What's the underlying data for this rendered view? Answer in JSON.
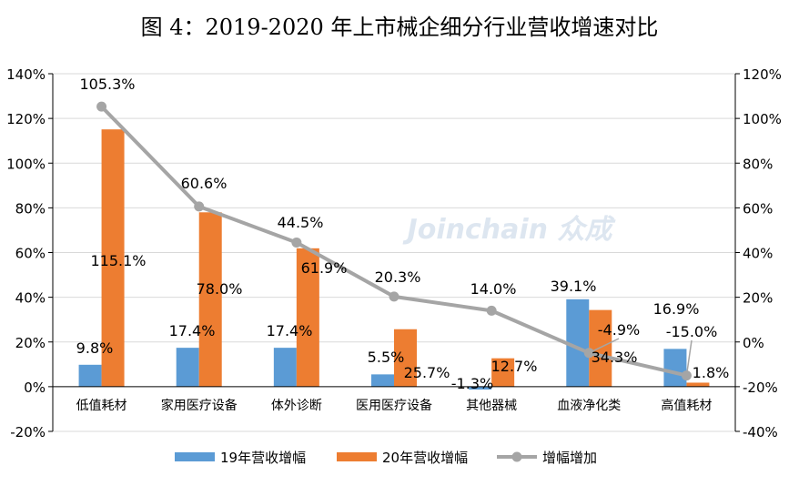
{
  "chart_data": {
    "type": "bar",
    "title": "图 4：2019-2020 年上市械企细分行业营收增速对比",
    "categories": [
      "低值耗材",
      "家用医疗设备",
      "体外诊断",
      "医用医疗设备",
      "其他器械",
      "血液净化类",
      "高值耗材"
    ],
    "series": [
      {
        "name": "19年营收增幅",
        "type": "bar",
        "axis": "left",
        "color": "#5B9BD5",
        "values": [
          9.8,
          17.4,
          17.4,
          5.5,
          -1.3,
          39.1,
          16.9
        ]
      },
      {
        "name": "20年营收增幅",
        "type": "bar",
        "axis": "left",
        "color": "#ED7D31",
        "values": [
          115.1,
          78.0,
          61.9,
          25.7,
          12.7,
          34.3,
          1.8
        ]
      },
      {
        "name": "增幅增加",
        "type": "line",
        "axis": "right",
        "color": "#A5A5A5",
        "values": [
          105.3,
          60.6,
          44.5,
          20.3,
          14.0,
          -4.9,
          -15.0
        ]
      }
    ],
    "left_axis": {
      "ylim": [
        -20,
        140
      ],
      "ticks": [
        "-20%",
        "0%",
        "20%",
        "40%",
        "60%",
        "80%",
        "100%",
        "120%",
        "140%"
      ]
    },
    "right_axis": {
      "ylim": [
        -40,
        120
      ],
      "ticks": [
        "-40%",
        "-20%",
        "0%",
        "20%",
        "40%",
        "60%",
        "80%",
        "100%",
        "120%"
      ]
    },
    "grid": true,
    "legend": "bottom",
    "watermark": "Joinchain 众成"
  }
}
